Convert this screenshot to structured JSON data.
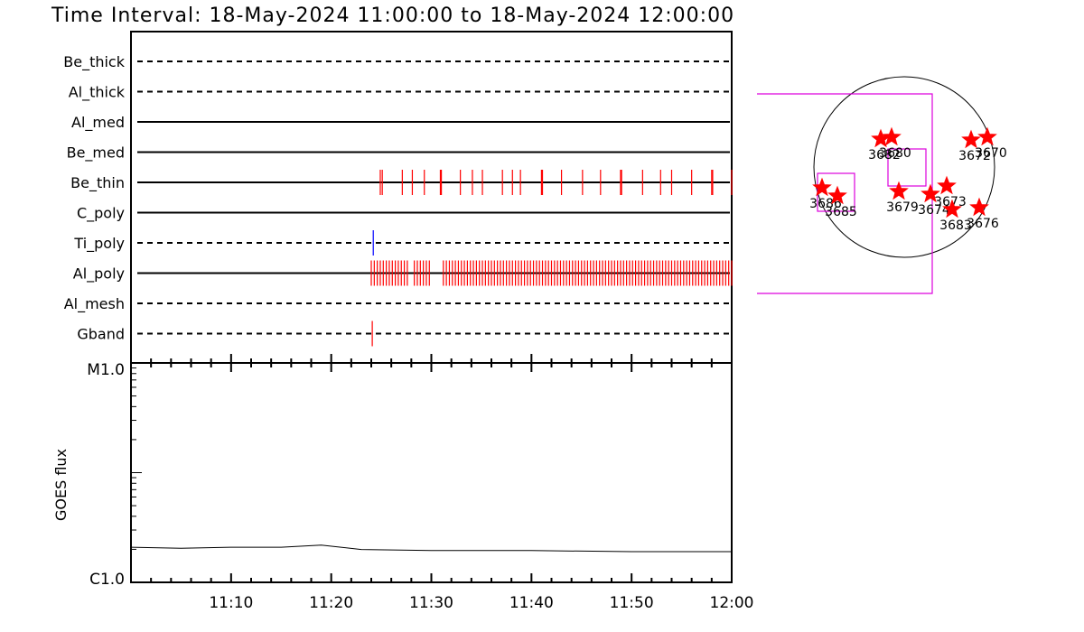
{
  "title": "Time Interval: 18-May-2024 11:00:00 to 18-May-2024 12:00:00",
  "colors": {
    "red": "#ff0000",
    "blue": "#0000ff",
    "magenta": "#dd00dd",
    "black": "#000000"
  },
  "chart_data": [
    {
      "type": "timeline",
      "time_range": [
        "11:00",
        "12:00"
      ],
      "rows": [
        {
          "label": "Be_thick",
          "style": "dashed",
          "events": []
        },
        {
          "label": "Al_thick",
          "style": "dashed",
          "events": []
        },
        {
          "label": "Al_med",
          "style": "solid",
          "events": []
        },
        {
          "label": "Be_med",
          "style": "solid",
          "events": []
        },
        {
          "label": "Be_thin",
          "style": "solid",
          "color": "red",
          "events": [
            24.9,
            25.1,
            27.1,
            28.1,
            29.3,
            30.9,
            31.0,
            32.9,
            34.1,
            35.1,
            37.1,
            38.1,
            38.9,
            41.0,
            41.1,
            43.0,
            45.1,
            46.9,
            48.9,
            49.0,
            51.1,
            52.9,
            54.0,
            56.0,
            58.0,
            58.1,
            60.0
          ]
        },
        {
          "label": "C_poly",
          "style": "solid",
          "events": []
        },
        {
          "label": "Ti_poly",
          "style": "dashed",
          "color": "blue",
          "events": [
            24.2
          ]
        },
        {
          "label": "Al_poly",
          "style": "solid",
          "color": "red",
          "events": [
            24.0,
            24.3,
            24.6,
            24.9,
            25.2,
            25.5,
            25.8,
            26.1,
            26.4,
            26.7,
            27.0,
            27.3,
            27.6,
            28.3,
            28.6,
            28.9,
            29.2,
            29.5,
            29.8,
            31.2,
            31.5,
            31.8,
            32.1,
            32.4,
            32.7,
            33.0,
            33.3,
            33.6,
            33.9,
            34.2,
            34.5,
            34.8,
            35.1,
            35.4,
            35.7,
            36.0,
            36.3,
            36.6,
            36.9,
            37.2,
            37.5,
            37.8,
            38.1,
            38.4,
            38.7,
            39.0,
            39.3,
            39.6,
            39.9,
            40.2,
            40.5,
            40.8,
            41.1,
            41.4,
            41.7,
            42.0,
            42.3,
            42.6,
            42.9,
            43.2,
            43.5,
            43.8,
            44.1,
            44.4,
            44.7,
            45.0,
            45.3,
            45.6,
            45.9,
            46.2,
            46.5,
            46.8,
            47.1,
            47.4,
            47.7,
            48.0,
            48.3,
            48.6,
            48.9,
            49.2,
            49.5,
            49.8,
            50.1,
            50.4,
            50.7,
            51.0,
            51.3,
            51.6,
            51.9,
            52.2,
            52.5,
            52.8,
            53.1,
            53.4,
            53.7,
            54.0,
            54.3,
            54.6,
            54.9,
            55.2,
            55.5,
            55.8,
            56.1,
            56.4,
            56.7,
            57.0,
            57.3,
            57.6,
            57.9,
            58.2,
            58.5,
            58.8,
            59.1,
            59.4,
            59.7,
            60.0
          ]
        },
        {
          "label": "Al_mesh",
          "style": "dashed",
          "events": []
        },
        {
          "label": "Gband",
          "style": "dashed",
          "color": "red",
          "events": [
            24.1
          ]
        }
      ]
    },
    {
      "type": "line",
      "ylabel": "GOES flux",
      "ylim_labels": [
        "C1.0",
        "M1.0"
      ],
      "x_ticks": [
        "11:10",
        "11:20",
        "11:30",
        "11:40",
        "11:50",
        "12:00"
      ],
      "x_minutes": [
        0,
        5,
        10,
        15,
        19,
        23,
        30,
        40,
        50,
        60
      ],
      "y_log": [
        -5.68,
        -5.69,
        -5.68,
        -5.68,
        -5.66,
        -5.7,
        -5.71,
        -5.71,
        -5.72,
        -5.72
      ]
    },
    {
      "type": "scatter",
      "name": "solar disk map",
      "regions": [
        {
          "label": "3670",
          "x": 0.92,
          "y": -0.33
        },
        {
          "label": "3672",
          "x": 0.74,
          "y": -0.3
        },
        {
          "label": "3680",
          "x": -0.14,
          "y": -0.33
        },
        {
          "label": "3682",
          "x": -0.26,
          "y": -0.31
        },
        {
          "label": "3686",
          "x": -0.91,
          "y": 0.23
        },
        {
          "label": "3685",
          "x": -0.74,
          "y": 0.32
        },
        {
          "label": "3679",
          "x": -0.06,
          "y": 0.27
        },
        {
          "label": "3674",
          "x": 0.29,
          "y": 0.3
        },
        {
          "label": "3673",
          "x": 0.47,
          "y": 0.21
        },
        {
          "label": "3683",
          "x": 0.53,
          "y": 0.47
        },
        {
          "label": "3676",
          "x": 0.83,
          "y": 0.45
        }
      ]
    }
  ]
}
